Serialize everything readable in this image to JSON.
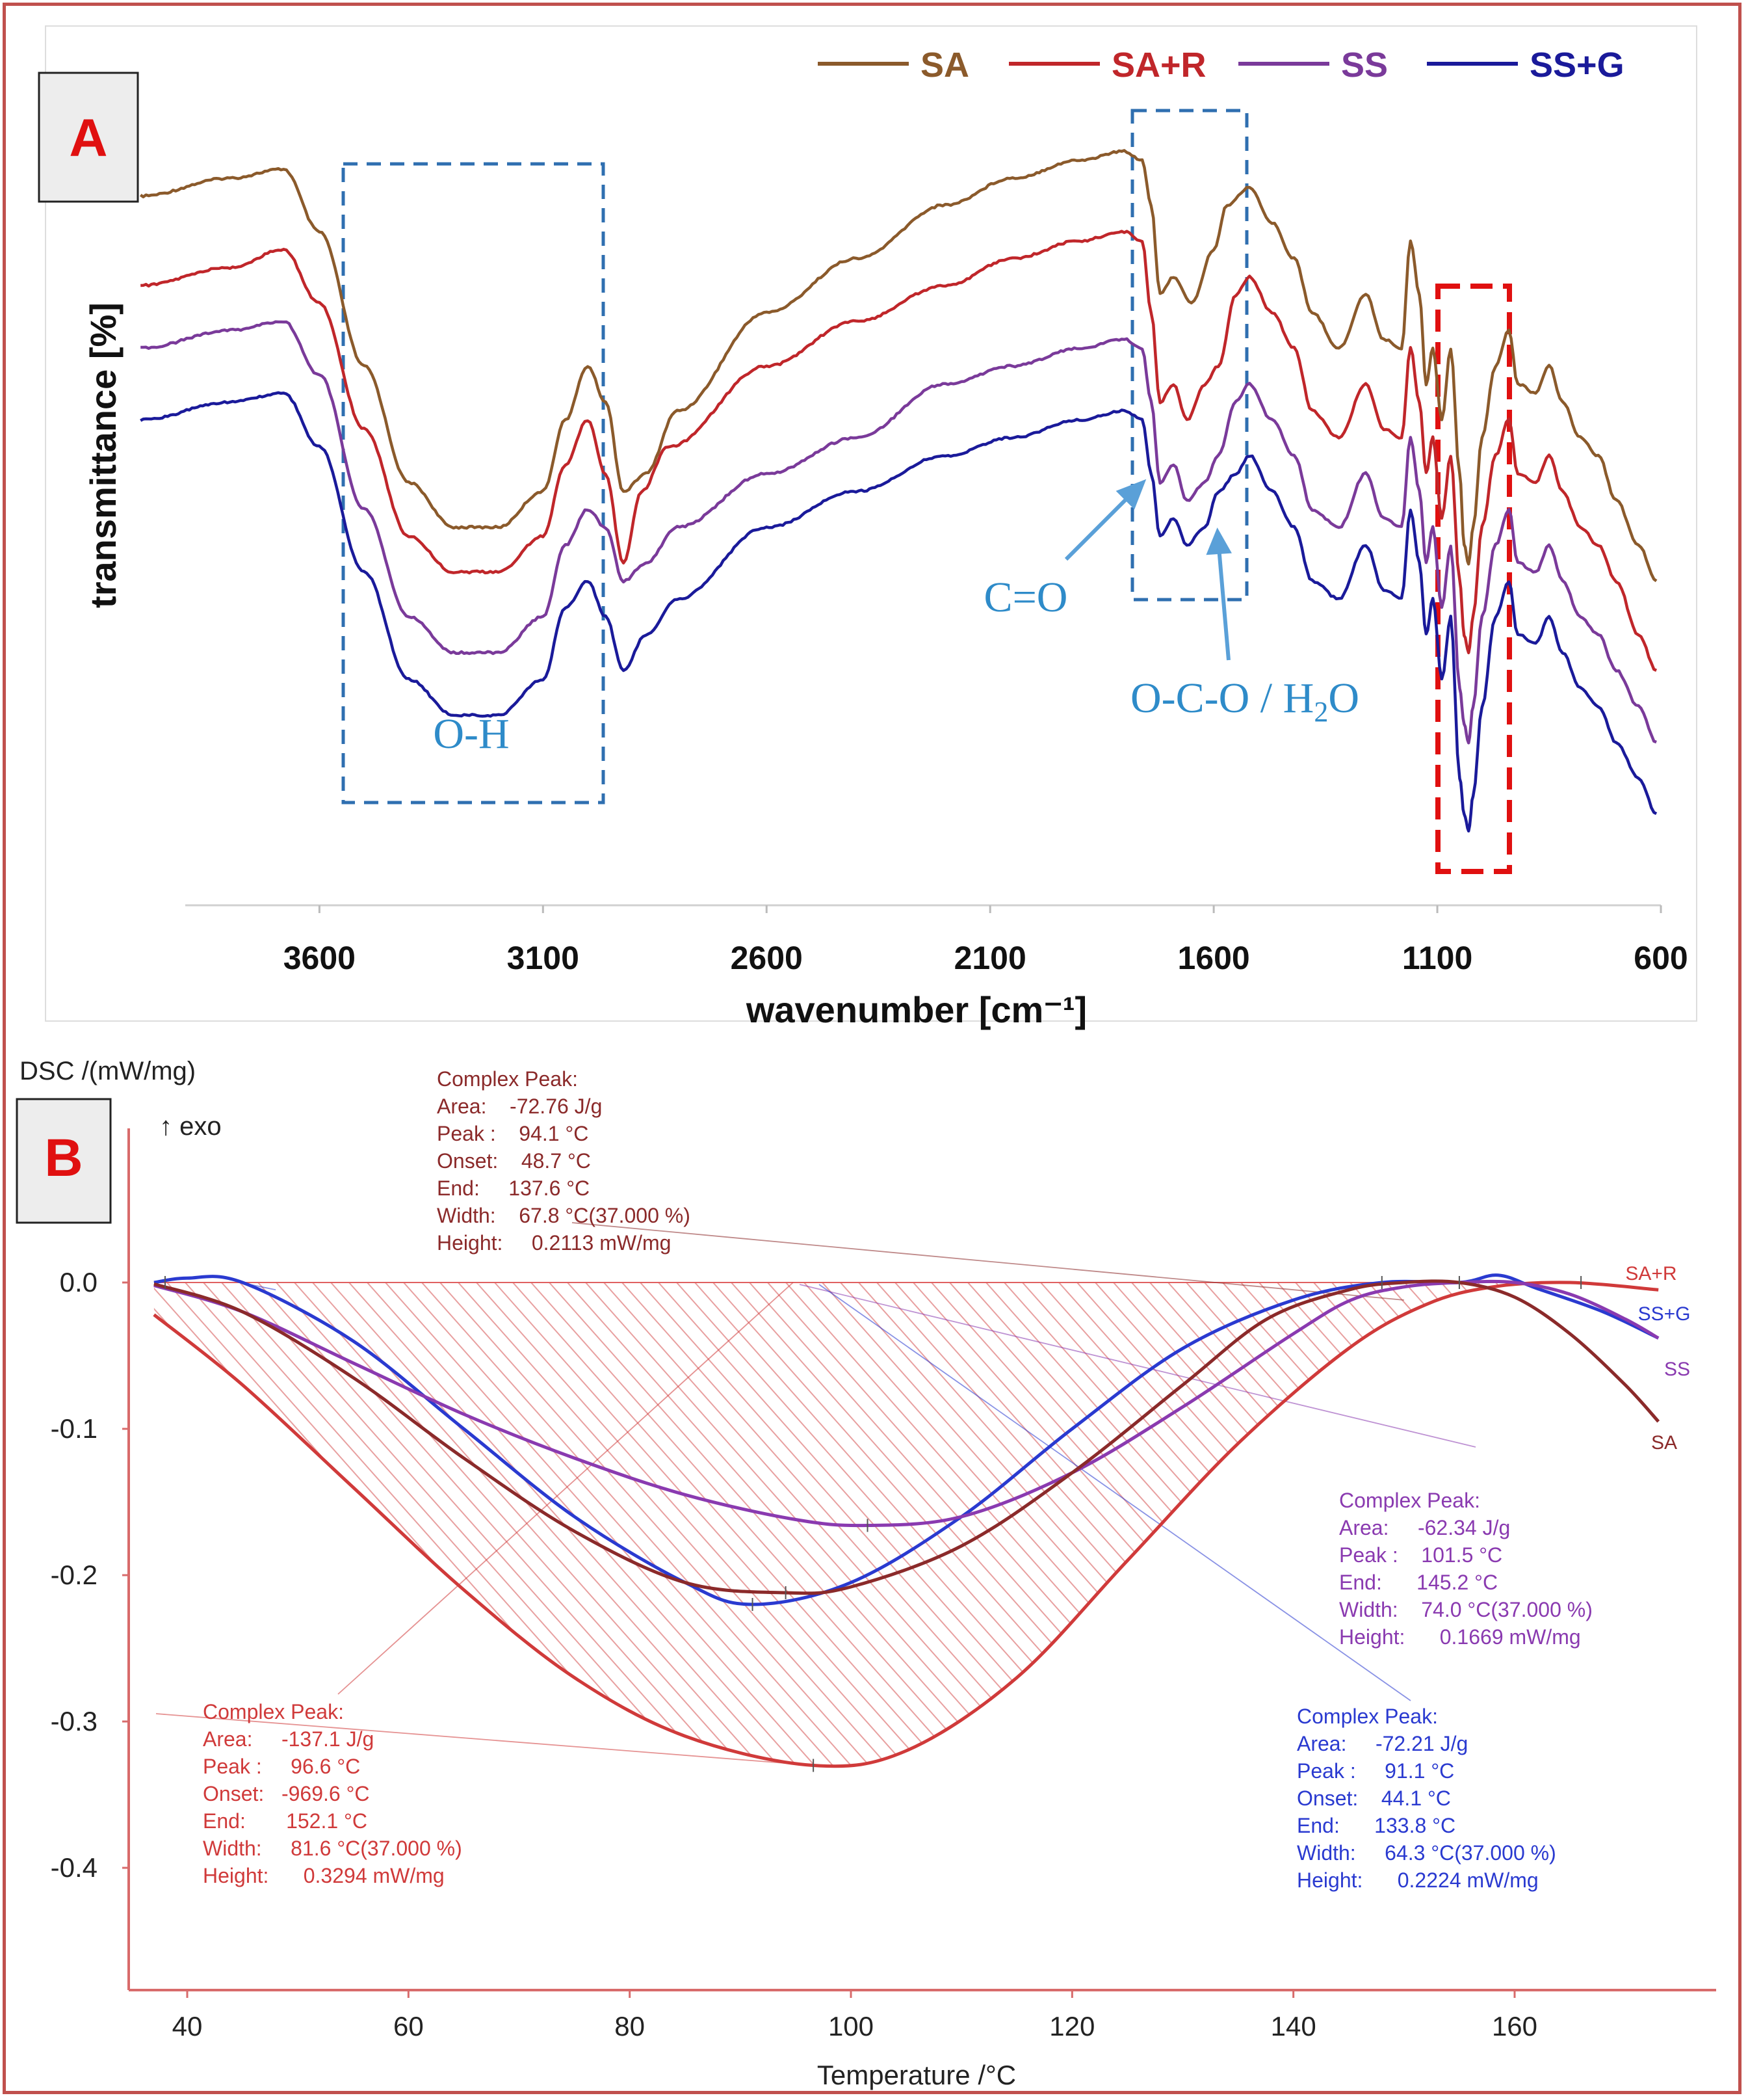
{
  "panels": {
    "a_label": "A",
    "b_label": "B",
    "label_color": "#e01010"
  },
  "chart_data": [
    {
      "type": "line",
      "panel": "A",
      "title": "",
      "xlabel": "wavenumber [cm⁻¹]",
      "ylabel": "transmittance [%]",
      "xlim": [
        4000,
        600
      ],
      "x_reversed": true,
      "xticks": [
        "3600",
        "3100",
        "2600",
        "2100",
        "1600",
        "1100",
        "600"
      ],
      "y_tick_labels": false,
      "grid": false,
      "legend_position": "top-right",
      "series": [
        {
          "name": "SA",
          "color": "#8b5a2b",
          "x": [
            4000,
            3800,
            3680,
            3600,
            3500,
            3400,
            3300,
            3200,
            3100,
            3050,
            3000,
            2960,
            2920,
            2870,
            2800,
            2600,
            2400,
            2200,
            2050,
            1900,
            1800,
            1760,
            1740,
            1720,
            1690,
            1650,
            1600,
            1570,
            1520,
            1470,
            1420,
            1380,
            1320,
            1260,
            1220,
            1180,
            1160,
            1140,
            1125,
            1110,
            1090,
            1070,
            1050,
            1040,
            1030,
            1020,
            1000,
            970,
            940,
            920,
            880,
            850,
            820,
            780,
            740,
            700,
            650,
            610
          ],
          "y": [
            89,
            91,
            92,
            85,
            70,
            57,
            52,
            52,
            56,
            64,
            70,
            66,
            56,
            58,
            65,
            76,
            82,
            88,
            91,
            93,
            94,
            93,
            88,
            78,
            80,
            77,
            83,
            88,
            90,
            86,
            82,
            76,
            72,
            78,
            73,
            72,
            84,
            78,
            68,
            72,
            64,
            72,
            58,
            50,
            48,
            52,
            62,
            70,
            74,
            68,
            67,
            70,
            66,
            62,
            60,
            55,
            50,
            46
          ]
        },
        {
          "name": "SA+R",
          "color": "#c0262a",
          "x": [
            4000,
            3800,
            3680,
            3600,
            3500,
            3400,
            3300,
            3200,
            3100,
            3050,
            3000,
            2960,
            2920,
            2880,
            2820,
            2600,
            2400,
            2200,
            2050,
            1900,
            1800,
            1760,
            1740,
            1720,
            1690,
            1660,
            1620,
            1590,
            1550,
            1520,
            1470,
            1420,
            1380,
            1320,
            1260,
            1220,
            1180,
            1160,
            1140,
            1125,
            1110,
            1090,
            1070,
            1050,
            1040,
            1030,
            1020,
            1000,
            970,
            940,
            920,
            880,
            850,
            820,
            780,
            740,
            700,
            650,
            610
          ],
          "y": [
            79,
            81,
            83,
            77,
            63,
            51,
            47,
            47,
            51,
            59,
            64,
            58,
            48,
            56,
            61,
            70,
            75,
            79,
            82,
            84,
            85,
            84,
            76,
            66,
            68,
            64,
            68,
            70,
            78,
            80,
            76,
            72,
            65,
            62,
            68,
            63,
            62,
            72,
            66,
            58,
            62,
            53,
            60,
            46,
            40,
            38,
            42,
            52,
            60,
            64,
            58,
            57,
            60,
            56,
            52,
            50,
            46,
            40,
            36
          ]
        },
        {
          "name": "SS",
          "color": "#7a3a9a",
          "x": [
            4000,
            3800,
            3680,
            3600,
            3500,
            3400,
            3300,
            3200,
            3100,
            3050,
            3000,
            2960,
            2920,
            2870,
            2800,
            2600,
            2400,
            2200,
            2050,
            1900,
            1800,
            1760,
            1740,
            1720,
            1690,
            1660,
            1620,
            1590,
            1550,
            1520,
            1470,
            1420,
            1380,
            1320,
            1260,
            1220,
            1180,
            1160,
            1140,
            1125,
            1110,
            1090,
            1070,
            1050,
            1040,
            1030,
            1020,
            1000,
            970,
            940,
            920,
            880,
            850,
            820,
            780,
            740,
            700,
            650,
            610
          ],
          "y": [
            72,
            74,
            75,
            69,
            54,
            42,
            38,
            38,
            42,
            50,
            54,
            52,
            46,
            48,
            52,
            58,
            62,
            68,
            70,
            72,
            73,
            72,
            66,
            57,
            59,
            55,
            57,
            60,
            66,
            68,
            64,
            60,
            54,
            52,
            58,
            53,
            52,
            62,
            56,
            48,
            52,
            43,
            50,
            34,
            30,
            28,
            32,
            42,
            50,
            54,
            48,
            47,
            50,
            46,
            42,
            40,
            36,
            32,
            28
          ]
        },
        {
          "name": "SS+G",
          "color": "#1a1a9a",
          "x": [
            4000,
            3800,
            3680,
            3600,
            3500,
            3400,
            3300,
            3200,
            3100,
            3050,
            3000,
            2960,
            2920,
            2870,
            2800,
            2600,
            2400,
            2200,
            2050,
            1900,
            1800,
            1760,
            1740,
            1720,
            1690,
            1660,
            1620,
            1590,
            1550,
            1520,
            1470,
            1420,
            1380,
            1320,
            1260,
            1220,
            1180,
            1160,
            1140,
            1125,
            1110,
            1090,
            1070,
            1050,
            1040,
            1030,
            1020,
            1000,
            970,
            940,
            920,
            880,
            850,
            820,
            780,
            740,
            700,
            650,
            610
          ],
          "y": [
            64,
            66,
            67,
            61,
            47,
            35,
            31,
            31,
            35,
            43,
            46,
            42,
            36,
            40,
            44,
            52,
            56,
            60,
            62,
            64,
            65,
            64,
            58,
            51,
            53,
            50,
            52,
            56,
            58,
            60,
            56,
            52,
            46,
            44,
            50,
            45,
            44,
            54,
            48,
            40,
            44,
            35,
            42,
            24,
            20,
            18,
            22,
            32,
            42,
            46,
            40,
            39,
            42,
            38,
            34,
            32,
            28,
            24,
            20
          ]
        }
      ],
      "annotations": [
        {
          "text": "O-H",
          "color": "#2e8bc9"
        },
        {
          "text": "C=O",
          "color": "#2e8bc9"
        },
        {
          "text": "O-C-O / H",
          "sub": "2",
          "tail": "O",
          "color": "#2e8bc9"
        }
      ]
    },
    {
      "type": "line",
      "panel": "B",
      "title": "",
      "xlabel": "Temperature /°C",
      "ylabel": "DSC /(mW/mg)",
      "exo_label": "↑ exo",
      "xlim": [
        35,
        175
      ],
      "ylim": [
        -0.48,
        0.05
      ],
      "xticks": [
        "40",
        "60",
        "80",
        "100",
        "120",
        "140",
        "160"
      ],
      "yticks": [
        "0.0",
        "-0.1",
        "-0.2",
        "-0.3",
        "-0.4"
      ],
      "grid": false,
      "series": [
        {
          "name": "SA+R",
          "color": "#d03a3a",
          "x": [
            37,
            45,
            55,
            65,
            75,
            85,
            96.6,
            105,
            115,
            125,
            135,
            145,
            152,
            158,
            165,
            173
          ],
          "y": [
            -0.022,
            -0.07,
            -0.14,
            -0.21,
            -0.27,
            -0.31,
            -0.33,
            -0.32,
            -0.27,
            -0.19,
            -0.11,
            -0.045,
            -0.015,
            -0.003,
            0.0,
            -0.005
          ]
        },
        {
          "name": "SS+G",
          "color": "#2a3ad0",
          "x": [
            37,
            40,
            45,
            55,
            65,
            75,
            85,
            91.1,
            100,
            110,
            120,
            130,
            140,
            148,
            155,
            158.5,
            162,
            168,
            173
          ],
          "y": [
            0.0,
            0.003,
            0.0,
            -0.04,
            -0.1,
            -0.16,
            -0.205,
            -0.22,
            -0.205,
            -0.16,
            -0.1,
            -0.045,
            -0.012,
            0.0,
            0.0,
            0.005,
            -0.004,
            -0.02,
            -0.038
          ]
        },
        {
          "name": "SS",
          "color": "#8a3ab0",
          "x": [
            37,
            45,
            55,
            65,
            75,
            85,
            95,
            101.5,
            110,
            120,
            130,
            140,
            145.2,
            150,
            155,
            160,
            165,
            170,
            173
          ],
          "y": [
            -0.002,
            -0.02,
            -0.055,
            -0.09,
            -0.12,
            -0.145,
            -0.162,
            -0.166,
            -0.16,
            -0.13,
            -0.085,
            -0.035,
            -0.012,
            -0.003,
            0.0,
            0.0,
            -0.008,
            -0.025,
            -0.038
          ]
        },
        {
          "name": "SA",
          "color": "#8b2a2a",
          "x": [
            37,
            45,
            55,
            65,
            75,
            85,
            94.1,
            100,
            110,
            120,
            130,
            137.6,
            145,
            150,
            155,
            160,
            165,
            170,
            173
          ],
          "y": [
            -0.001,
            -0.02,
            -0.065,
            -0.12,
            -0.17,
            -0.205,
            -0.212,
            -0.208,
            -0.18,
            -0.13,
            -0.07,
            -0.025,
            -0.005,
            0.0,
            0.0,
            -0.01,
            -0.035,
            -0.07,
            -0.095
          ]
        }
      ],
      "peak_boxes": [
        {
          "series": "SA",
          "color": "#8b2a2a",
          "lines": [
            "Complex Peak:",
            "Area:    -72.76 J/g",
            "Peak :    94.1 °C",
            "Onset:    48.7 °C",
            "End:     137.6 °C",
            "Width:    67.8 °C(37.000 %)",
            "Height:     0.2113 mW/mg"
          ]
        },
        {
          "series": "SS",
          "color": "#8a3ab0",
          "lines": [
            "Complex Peak:",
            "Area:     -62.34 J/g",
            "Peak :    101.5 °C",
            "End:      145.2 °C",
            "Width:    74.0 °C(37.000 %)",
            "Height:      0.1669 mW/mg"
          ]
        },
        {
          "series": "SA+R",
          "color": "#d03a3a",
          "lines": [
            "Complex Peak:",
            "Area:     -137.1 J/g",
            "Peak :     96.6 °C",
            "Onset:   -969.6 °C",
            "End:       152.1 °C",
            "Width:     81.6 °C(37.000 %)",
            "Height:      0.3294 mW/mg"
          ]
        },
        {
          "series": "SS+G",
          "color": "#2a3ad0",
          "lines": [
            "Complex Peak:",
            "Area:     -72.21 J/g",
            "Peak :     91.1 °C",
            "Onset:    44.1 °C",
            "End:      133.8 °C",
            "Width:     64.3 °C(37.000 %)",
            "Height:      0.2224 mW/mg"
          ]
        }
      ]
    }
  ]
}
